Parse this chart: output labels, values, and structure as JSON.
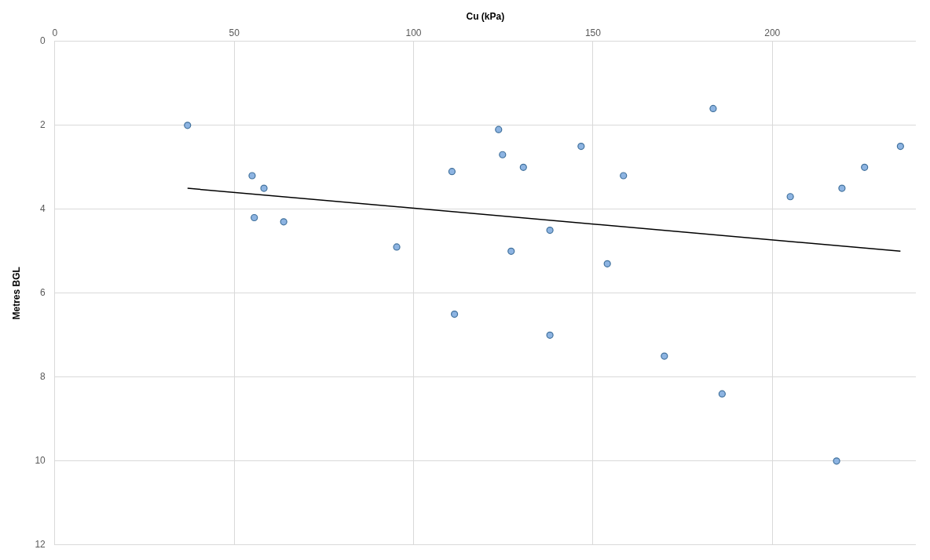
{
  "chart_data": {
    "type": "scatter",
    "xlabel": "Cu (kPa)",
    "ylabel": "Metres BGL",
    "xlim": [
      0,
      240
    ],
    "xticks": [
      0,
      50,
      100,
      150,
      200
    ],
    "ylim": [
      12,
      0
    ],
    "yticks": [
      0,
      2,
      4,
      6,
      8,
      10,
      12
    ],
    "grid": true,
    "legend": false,
    "series": [
      {
        "marker": "circle",
        "color": "#8db4e2",
        "x": [
          37,
          55,
          58.3,
          55.6,
          63.8,
          95.3,
          110.7,
          111.4,
          123.7,
          124.8,
          130.6,
          127.2,
          138,
          138,
          146.7,
          154,
          158.5,
          169.9,
          183.5,
          186,
          205,
          219.4,
          225.7,
          235.7,
          217.9
        ],
        "values": [
          2.0,
          3.2,
          3.5,
          4.2,
          4.3,
          4.9,
          3.1,
          6.5,
          2.1,
          2.7,
          3.0,
          5.0,
          4.5,
          7.0,
          2.5,
          5.3,
          3.2,
          7.5,
          1.6,
          8.4,
          3.7,
          3.5,
          3.0,
          2.5,
          10.0
        ]
      },
      {
        "type": "line",
        "marker": "none",
        "color": "#000000",
        "x": [
          37,
          235.7
        ],
        "values": [
          3.5,
          5.0
        ]
      }
    ]
  }
}
